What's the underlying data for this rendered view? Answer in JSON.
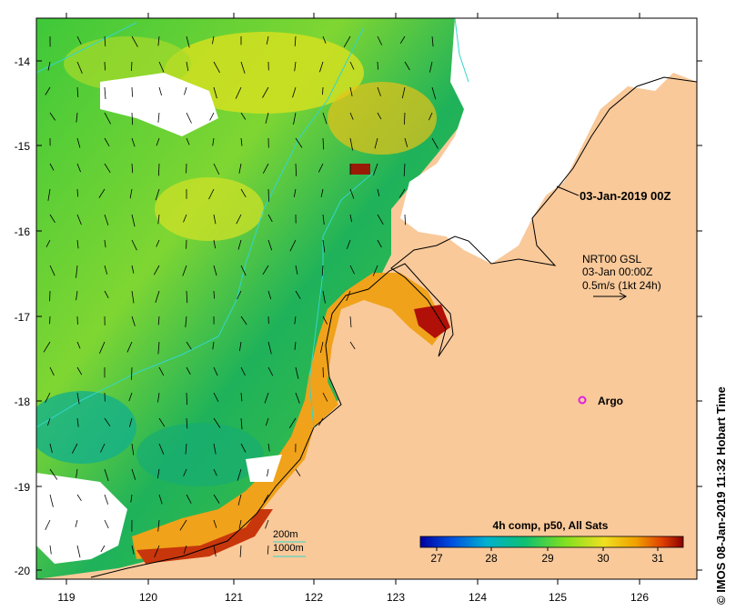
{
  "map": {
    "lon_ticks": [
      "119",
      "120",
      "121",
      "122",
      "123",
      "124",
      "125",
      "126"
    ],
    "lat_ticks": [
      "-14",
      "-15",
      "-16",
      "-17",
      "-18",
      "-19",
      "-20"
    ],
    "timestamp": "03-Jan-2019 00Z",
    "current_source": "NRT00 GSL",
    "current_time": "03-Jan 00:00Z",
    "current_scale": "0.5m/s (1kt 24h)",
    "argo_label": "Argo",
    "isobath_200": "200m",
    "isobath_1000": "1000m",
    "colorbar_title": "4h comp, p50, All Sats",
    "colorbar_ticks": [
      "27",
      "28",
      "29",
      "30",
      "31"
    ],
    "credit": "© IMOS 08-Jan-2019 11:32 Hobart Time"
  },
  "colors": {
    "land": "#f9c99a",
    "cloud": "#ffffff",
    "argo": "#e020e0",
    "isobath": "#33d6cc"
  }
}
